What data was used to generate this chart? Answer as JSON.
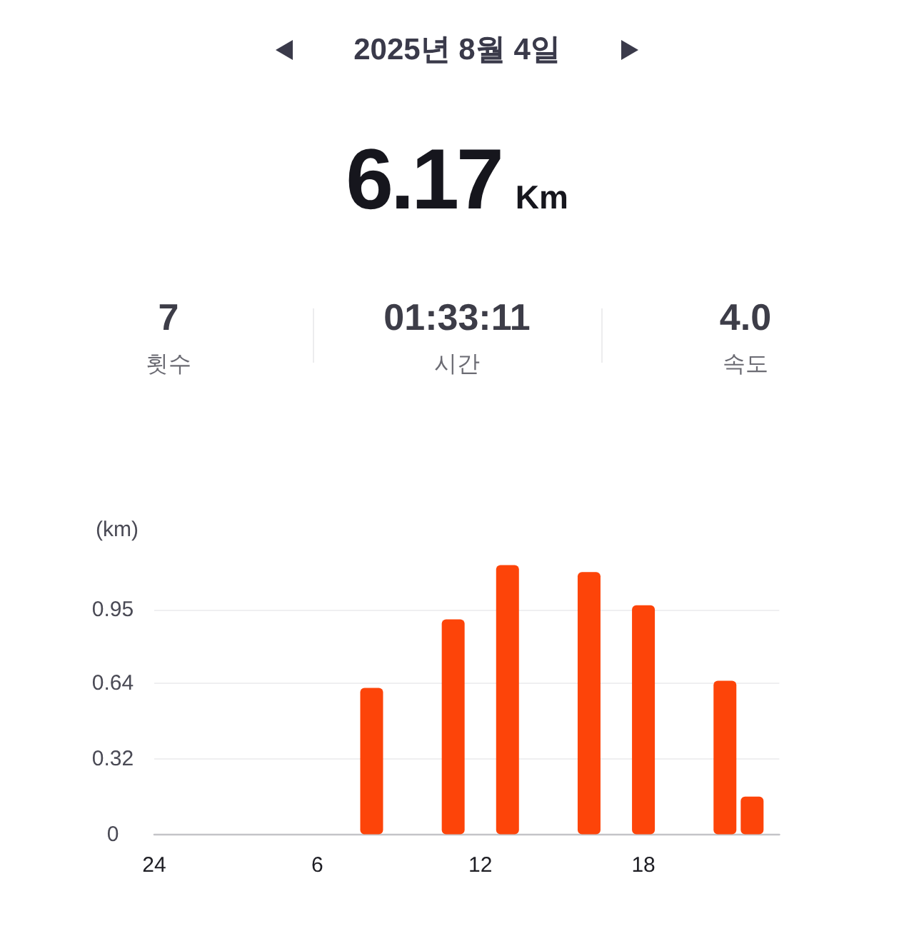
{
  "chart_data": [
    {
      "type": "other",
      "title": "2025년 8월 4일",
      "annotations": [
        "6.17",
        "Km",
        "7",
        "횟수",
        "01:33:11",
        "시간",
        "4.0",
        "속도"
      ]
    },
    {
      "type": "bar",
      "ylabel": "(km)",
      "categories": [
        "24",
        null,
        null,
        null,
        null,
        null,
        "6",
        null,
        null,
        null,
        null,
        null,
        "12",
        null,
        null,
        null,
        null,
        null,
        "18",
        null,
        null,
        null,
        null,
        null
      ],
      "values": [
        null,
        null,
        null,
        null,
        null,
        null,
        null,
        null,
        0.62,
        null,
        null,
        0.91,
        null,
        1.14,
        null,
        null,
        1.11,
        null,
        0.97,
        null,
        null,
        0.65,
        0.16,
        null
      ],
      "color": "#fd4409",
      "ylim": [
        0,
        1.14
      ],
      "yticks": [
        0,
        0.32,
        0.64,
        0.95
      ],
      "grid": "y"
    }
  ]
}
